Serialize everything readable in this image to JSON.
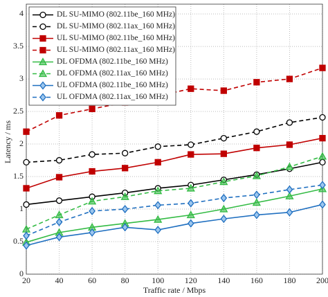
{
  "chart_data": {
    "type": "line",
    "x_label": "Traffic rate / Mbps",
    "y_label": "Latency / ms",
    "x": [
      20,
      40,
      60,
      80,
      100,
      120,
      140,
      160,
      180,
      200
    ],
    "xlim": [
      20,
      200
    ],
    "xticks": [
      20,
      40,
      60,
      80,
      100,
      120,
      140,
      160,
      180,
      200
    ],
    "ylim": [
      0,
      4.15
    ],
    "yticks": [
      0,
      0.5,
      1,
      1.5,
      2,
      2.5,
      3,
      3.5,
      4
    ],
    "grid": true,
    "legend": "upper left",
    "series": [
      {
        "name": "DL SU-MIMO (802.11be_160 MHz)",
        "color": "#000000",
        "style": "solid",
        "marker": "circle",
        "values": [
          1.07,
          1.13,
          1.19,
          1.25,
          1.32,
          1.37,
          1.45,
          1.53,
          1.62,
          1.72
        ]
      },
      {
        "name": "DL SU-MIMO (802.11ax_160 MHz)",
        "color": "#000000",
        "style": "dashed",
        "marker": "circle",
        "values": [
          1.72,
          1.75,
          1.84,
          1.86,
          1.96,
          1.99,
          2.09,
          2.19,
          2.33,
          2.41
        ]
      },
      {
        "name": "UL SU-MIMO (802.11be_160 MHz)",
        "color": "#c00000",
        "style": "solid",
        "marker": "square",
        "values": [
          1.32,
          1.49,
          1.58,
          1.63,
          1.72,
          1.84,
          1.85,
          1.94,
          1.99,
          2.09
        ]
      },
      {
        "name": "UL SU-MIMO (802.11ax_160 MHz)",
        "color": "#c00000",
        "style": "dashed",
        "marker": "square",
        "values": [
          2.19,
          2.44,
          2.54,
          2.64,
          2.74,
          2.85,
          2.82,
          2.95,
          3.0,
          3.17
        ]
      },
      {
        "name": "DL OFDMA (802.11be_160 MHz)",
        "color": "#33bb44",
        "style": "solid",
        "marker": "triangle",
        "values": [
          0.49,
          0.64,
          0.72,
          0.78,
          0.84,
          0.91,
          1.0,
          1.1,
          1.2,
          1.31
        ]
      },
      {
        "name": "DL OFDMA (802.11ax_160 MHz)",
        "color": "#33bb44",
        "style": "dashed",
        "marker": "triangle",
        "values": [
          0.69,
          0.91,
          1.12,
          1.19,
          1.28,
          1.32,
          1.42,
          1.51,
          1.65,
          1.81
        ]
      },
      {
        "name": "UL OFDMA (802.11be_160 MHz)",
        "color": "#1f6fc0",
        "style": "solid",
        "marker": "diamond",
        "values": [
          0.44,
          0.57,
          0.64,
          0.72,
          0.68,
          0.78,
          0.85,
          0.91,
          0.95,
          1.07
        ]
      },
      {
        "name": "UL OFDMA (802.11ax_160 MHz)",
        "color": "#1f6fc0",
        "style": "dashed",
        "marker": "diamond",
        "values": [
          0.59,
          0.8,
          0.97,
          1.0,
          1.06,
          1.09,
          1.17,
          1.22,
          1.3,
          1.37
        ]
      }
    ]
  }
}
